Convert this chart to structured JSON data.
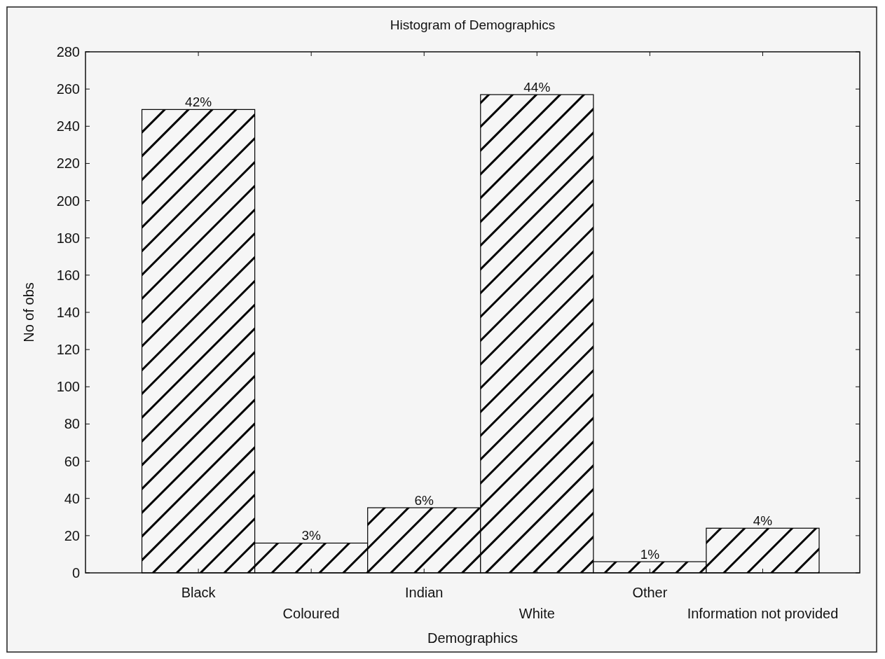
{
  "chart_data": {
    "type": "bar",
    "title": "Histogram of Demographics",
    "xlabel": "Demographics",
    "ylabel": "No of obs",
    "categories": [
      "Black",
      "Coloured",
      "Indian",
      "White",
      "Other",
      "Information not provided"
    ],
    "values": [
      249,
      16,
      35,
      257,
      6,
      24
    ],
    "annotations": [
      {
        "text": "42%",
        "x": "Black",
        "y": 249
      },
      {
        "text": "3%",
        "x": "Coloured",
        "y": 16
      },
      {
        "text": "6%",
        "x": "Indian",
        "y": 35
      },
      {
        "text": "44%",
        "x": "White",
        "y": 257
      },
      {
        "text": "1%",
        "x": "Other",
        "y": 6
      },
      {
        "text": "4%",
        "x": "Information not provided",
        "y": 24
      }
    ],
    "color": "#000000",
    "ylim": [
      0,
      280
    ],
    "yticks": [
      0,
      20,
      40,
      60,
      80,
      100,
      120,
      140,
      160,
      180,
      200,
      220,
      240,
      260,
      280
    ],
    "grid": false
  }
}
